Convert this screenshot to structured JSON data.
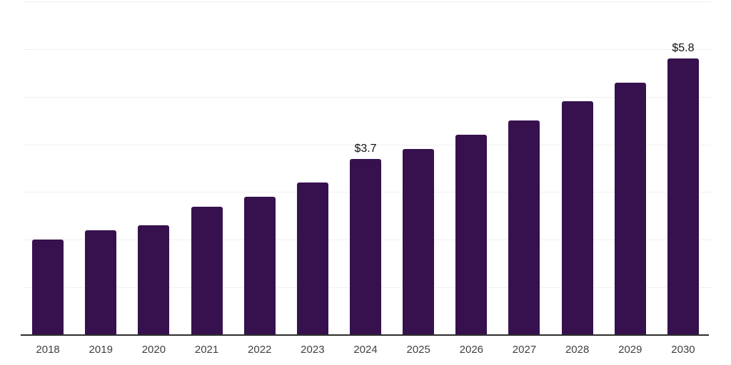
{
  "chart_data": {
    "type": "bar",
    "title": "",
    "xlabel": "",
    "ylabel": "",
    "categories": [
      "2018",
      "2019",
      "2020",
      "2021",
      "2022",
      "2023",
      "2024",
      "2025",
      "2026",
      "2027",
      "2028",
      "2029",
      "2030"
    ],
    "values": [
      2.0,
      2.2,
      2.3,
      2.7,
      2.9,
      3.2,
      3.7,
      3.9,
      4.2,
      4.5,
      4.9,
      5.3,
      5.8
    ],
    "value_labels": [
      "",
      "",
      "",
      "",
      "",
      "",
      "$3.7",
      "",
      "",
      "",
      "",
      "",
      "$5.8"
    ],
    "ylim": [
      0,
      7
    ],
    "gridline_values": [
      1,
      2,
      3,
      4,
      5,
      6,
      7
    ],
    "grid": true,
    "legend": "none",
    "y_tick_labels_visible": false,
    "colors": {
      "bar": "#36114E",
      "gridline": "#f0f0f0",
      "axis_line": "#2d2d2d",
      "tick_label": "#404040",
      "value_label": "#111111",
      "background": "#ffffff"
    }
  }
}
